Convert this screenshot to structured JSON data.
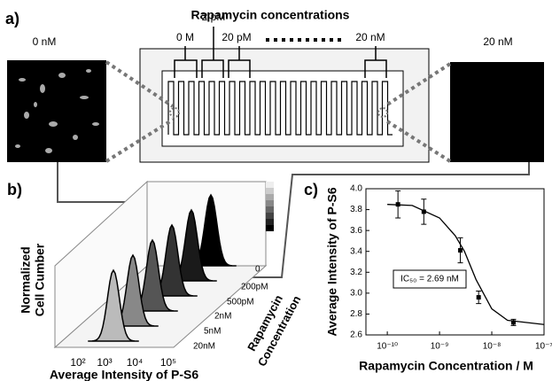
{
  "panel_a": {
    "label": "a)",
    "title": "Rapamycin concentrations",
    "channel_labels": [
      "2 pM",
      "0 M",
      "20 pM",
      "20 nM"
    ],
    "left_image": "0 nM",
    "right_image": "20 nM"
  },
  "panel_b": {
    "label": "b)",
    "y_label": [
      "Normalized",
      "Cell Cumber"
    ],
    "x_ticks": [
      "10²",
      "10³",
      "10⁴",
      "10⁵"
    ],
    "x_label": "Average Intensity of P-S6",
    "depth_ticks": [
      "0",
      "200pM",
      "500pM",
      "2nM",
      "5nM",
      "20nM"
    ],
    "depth_label": [
      "Rapamycin",
      "Concentration"
    ]
  },
  "panel_c": {
    "label": "c)"
  },
  "chart_data": {
    "type": "scatter",
    "x_scale": "log",
    "xlabel": "Rapamycin Concentration / M",
    "ylabel": "Average Intensity of P-S6",
    "annotation": "IC₅₀ = 2.69 nM",
    "xlim": [
      3.9e-11,
      1e-07
    ],
    "xticks": [
      {
        "value": 1e-10,
        "label": "10⁻¹⁰"
      },
      {
        "value": 1e-09,
        "label": "10⁻⁹"
      },
      {
        "value": 1e-08,
        "label": "10⁻⁸"
      },
      {
        "value": 1e-07,
        "label": "10⁻⁷"
      }
    ],
    "ylim": [
      2.6,
      4.0
    ],
    "yticks": [
      2.6,
      2.8,
      {
        "value": 3,
        "label": "3.0"
      },
      3.2,
      3.4,
      3.6,
      3.8,
      {
        "value": 4,
        "label": "4.0"
      }
    ],
    "series": [
      {
        "type": "scatter",
        "color": "#000000",
        "x": [
          1.6e-10,
          5e-10,
          2.5e-09,
          5.6e-09,
          2.6e-08
        ],
        "values": [
          3.85,
          3.78,
          3.41,
          2.96,
          2.72
        ],
        "errors": [
          0.13,
          0.12,
          0.12,
          0.06,
          0.03
        ]
      },
      {
        "type": "line",
        "color": "#000000",
        "x": [
          1e-10,
          3e-10,
          1e-09,
          2e-09,
          3e-09,
          5e-09,
          1e-08,
          2e-08,
          1e-07
        ],
        "values": [
          3.85,
          3.84,
          3.72,
          3.55,
          3.4,
          3.13,
          2.85,
          2.74,
          2.7
        ]
      }
    ]
  }
}
